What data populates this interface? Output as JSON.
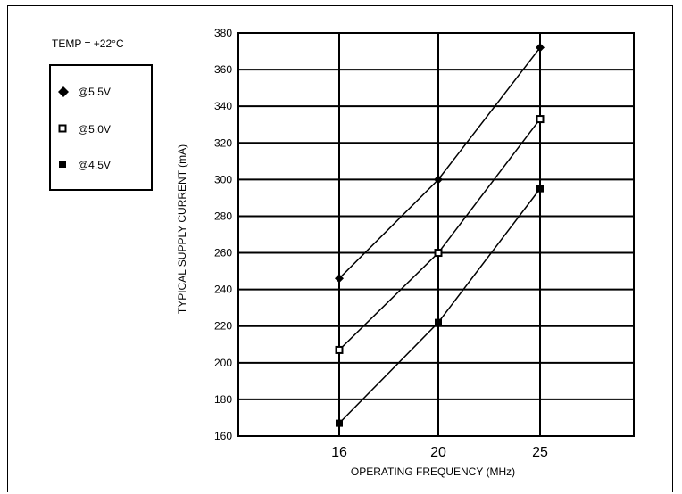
{
  "annotation": "TEMP = +22°C",
  "chart_data": {
    "type": "line",
    "xlabel": "OPERATING FREQUENCY (MHz)",
    "ylabel": "TYPICAL SUPPLY CURRENT (mA)",
    "ylim": [
      160,
      380
    ],
    "yticks": [
      160,
      180,
      200,
      220,
      240,
      260,
      280,
      300,
      320,
      340,
      360,
      380
    ],
    "xticks": [
      16,
      20,
      25
    ],
    "x": [
      16,
      20,
      25
    ],
    "grid": true,
    "legend_position": "left",
    "series": [
      {
        "name": "@5.5V",
        "marker": "diamond-filled",
        "values": [
          246,
          300,
          372
        ]
      },
      {
        "name": "@5.0V",
        "marker": "square-open",
        "values": [
          207,
          260,
          333
        ]
      },
      {
        "name": "@4.5V",
        "marker": "square-filled",
        "values": [
          167,
          222,
          295
        ]
      }
    ]
  }
}
